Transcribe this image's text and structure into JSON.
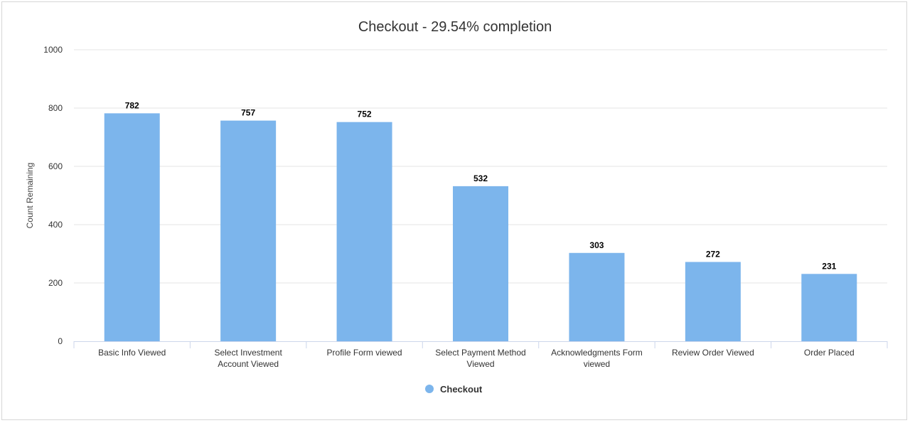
{
  "chart_data": {
    "type": "bar",
    "title": "Checkout - 29.54% completion",
    "ylabel": "Count Remaining",
    "xlabel": "",
    "ylim": [
      0,
      1000
    ],
    "yticks": [
      0,
      200,
      400,
      600,
      800,
      1000
    ],
    "categories": [
      [
        "Basic Info Viewed"
      ],
      [
        "Select Investment",
        "Account Viewed"
      ],
      [
        "Profile Form viewed"
      ],
      [
        "Select Payment Method",
        "Viewed"
      ],
      [
        "Acknowledgments Form",
        "viewed"
      ],
      [
        "Review Order Viewed"
      ],
      [
        "Order Placed"
      ]
    ],
    "series": [
      {
        "name": "Checkout",
        "color": "#7cb5ec",
        "values": [
          782,
          757,
          752,
          532,
          303,
          272,
          231
        ]
      }
    ],
    "grid": true,
    "legend": "bottom-center"
  }
}
